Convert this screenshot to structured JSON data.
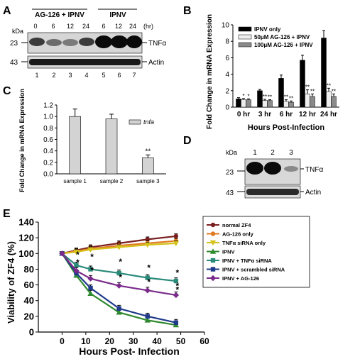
{
  "panels": {
    "A": {
      "letter": "A",
      "kda_label": "kDa",
      "group_labels": [
        "AG-126 + IPNV",
        "IPNV"
      ],
      "times": [
        "0",
        "6",
        "12",
        "24",
        "6",
        "12",
        "24"
      ],
      "time_unit": "(hr)",
      "markers": [
        "23",
        "43"
      ],
      "band_labels": [
        "TNFα",
        "Actin"
      ],
      "lanes": [
        "1",
        "2",
        "3",
        "4",
        "5",
        "6",
        "7"
      ]
    },
    "B": {
      "letter": "B",
      "legend_colors": [
        "#000000",
        "#eeeeee",
        "#8a8a8a"
      ],
      "sig_marks": [
        "*",
        "*",
        "**",
        "**",
        "**",
        "**",
        "**",
        "**",
        "**",
        "**"
      ]
    },
    "C": {
      "letter": "C",
      "sig_mark": "**"
    },
    "D": {
      "letter": "D",
      "kda_label": "kDa",
      "lanes": [
        "1",
        "2",
        "3"
      ],
      "markers": [
        "23",
        "43"
      ],
      "band_labels": [
        "TNFα",
        "Actin"
      ]
    },
    "E": {
      "letter": "E",
      "sig_marks": [
        "*",
        "*",
        "*",
        "*",
        "*",
        "*",
        "*",
        "*",
        "*",
        "*",
        "*"
      ]
    }
  },
  "chart_data": [
    {
      "panel": "B",
      "type": "bar",
      "categories": [
        "0 hr",
        "3 hr",
        "6 hr",
        "12 hr",
        "24 hr"
      ],
      "series": [
        {
          "name": "IPNV only",
          "values": [
            1.0,
            2.0,
            3.5,
            5.7,
            8.4
          ],
          "errors": [
            0.15,
            0.15,
            0.4,
            0.6,
            0.9
          ],
          "color": "#000000"
        },
        {
          "name": "50μM AG-126 + IPNV",
          "values": [
            0.9,
            0.8,
            0.7,
            1.6,
            1.9
          ],
          "errors": [
            0.15,
            0.15,
            0.2,
            0.5,
            0.4
          ],
          "color": "#eeeeee"
        },
        {
          "name": "100μM AG-126 + IPNV",
          "values": [
            0.9,
            0.8,
            0.6,
            1.3,
            1.3
          ],
          "errors": [
            0.1,
            0.1,
            0.15,
            0.3,
            0.3
          ],
          "color": "#8a8a8a"
        }
      ],
      "ylabel": "Fold Change in mRNA Expression",
      "xlabel": "Hours Post-Infection",
      "ylim": [
        0,
        10
      ],
      "yticks": [
        "0",
        "2",
        "4",
        "6",
        "8",
        "10"
      ],
      "legend": "top-left"
    },
    {
      "panel": "C",
      "type": "bar",
      "categories": [
        "sample 1",
        "sample 2",
        "sample 3"
      ],
      "series": [
        {
          "name": "tnfa",
          "values": [
            1.0,
            0.96,
            0.28
          ],
          "errors": [
            0.13,
            0.08,
            0.05
          ],
          "color": "#d3d3d3"
        }
      ],
      "ylabel": "Fold Change in mRNA Expression",
      "ylim": [
        0,
        1.2
      ],
      "yticks": [
        "0.0",
        "0.2",
        "0.4",
        "0.6",
        "0.8",
        "1.0",
        "1.2"
      ],
      "legend": "top-right"
    },
    {
      "panel": "E",
      "type": "line",
      "x": [
        0,
        6,
        12,
        24,
        36,
        48
      ],
      "series": [
        {
          "name": "normal ZF4",
          "values": [
            100,
            104,
            108,
            113,
            118,
            122
          ],
          "color": "#7a1f1f",
          "marker": "circle"
        },
        {
          "name": "AG-126 only",
          "values": [
            100,
            103,
            106,
            110,
            113,
            116
          ],
          "color": "#e07a20",
          "marker": "circle"
        },
        {
          "name": "TNFα siRNA only",
          "values": [
            100,
            102,
            105,
            108,
            111,
            113
          ],
          "color": "#d4c21a",
          "marker": "triangle-down"
        },
        {
          "name": "IPNV",
          "values": [
            100,
            72,
            49,
            25,
            15,
            9
          ],
          "color": "#2f8a2f",
          "marker": "triangle-up"
        },
        {
          "name": "IPNV + TNFα siRNA",
          "values": [
            100,
            85,
            80,
            75,
            69,
            65
          ],
          "color": "#2a8a7a",
          "marker": "square"
        },
        {
          "name": "IPNV + scrambled siRNA",
          "values": [
            100,
            75,
            56,
            30,
            20,
            12
          ],
          "color": "#1f3a8a",
          "marker": "square"
        },
        {
          "name": "IPNV + AG-126",
          "values": [
            100,
            78,
            68,
            59,
            53,
            47
          ],
          "color": "#7a2a8a",
          "marker": "diamond"
        }
      ],
      "ylabel": "Viability of ZF4 (%)",
      "xlabel": "Hours Post- Infection",
      "xlim": [
        -10,
        60
      ],
      "ylim": [
        0,
        140
      ],
      "xticks": [
        "0",
        "10",
        "20",
        "30",
        "40",
        "50",
        "60"
      ],
      "yticks": [
        "0",
        "20",
        "40",
        "60",
        "80",
        "100",
        "120",
        "140"
      ],
      "legend": "right"
    }
  ]
}
